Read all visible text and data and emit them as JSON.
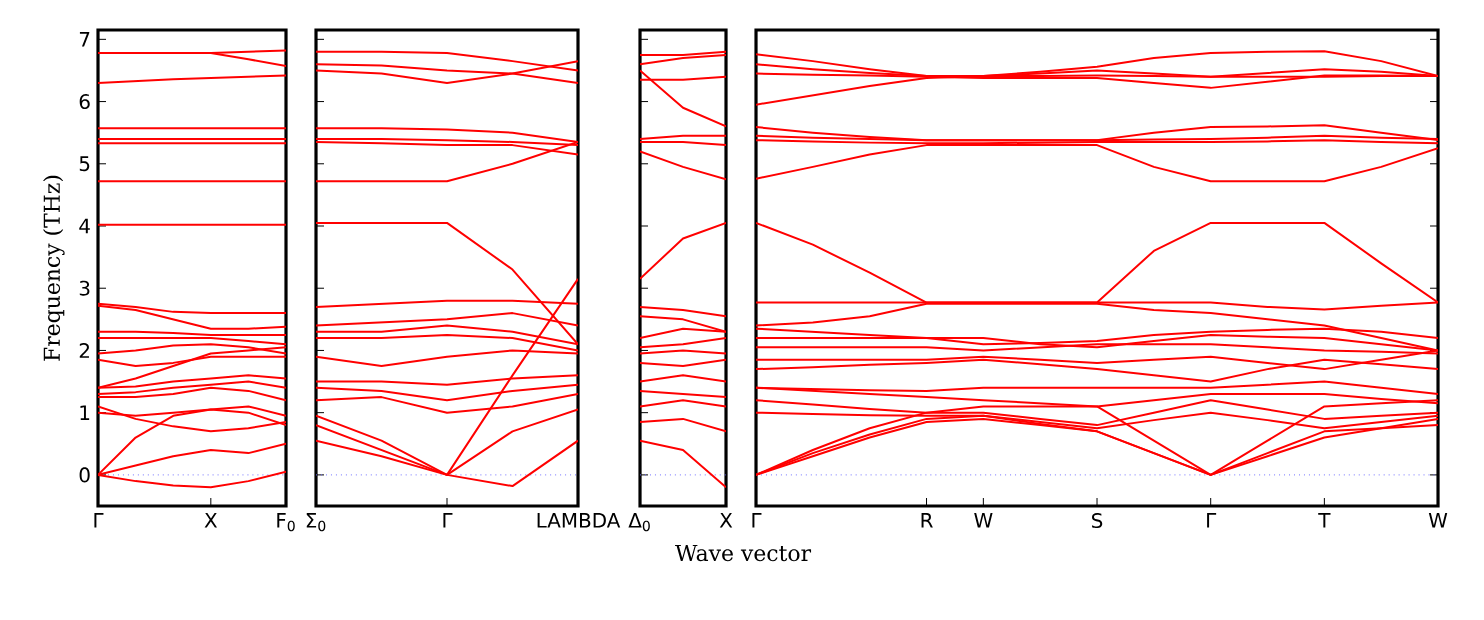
{
  "chart_data": [
    {
      "type": "line",
      "ylabel": "Frequency (THz)",
      "categories": [
        "Γ",
        null,
        null,
        "X",
        null,
        "F$_{0}$"
      ],
      "ylim": [
        -0.5,
        7.15
      ],
      "yticks": [
        0,
        1,
        2,
        3,
        4,
        5,
        6,
        7
      ],
      "marker": "none",
      "line_style": "solid",
      "ref_lines": [
        {
          "axis": "y",
          "value": 0,
          "color": "#7070ff",
          "line_style": "dotted"
        }
      ],
      "series": [
        {
          "color": "#ff0000",
          "values": [
            6.78,
            6.78,
            6.78,
            6.78,
            6.8,
            6.82
          ]
        },
        {
          "color": "#ff0000",
          "values": [
            6.78,
            6.78,
            6.78,
            6.78,
            6.68,
            6.57
          ]
        },
        {
          "color": "#ff0000",
          "values": [
            6.3,
            6.33,
            6.36,
            6.38,
            6.4,
            6.42
          ]
        },
        {
          "color": "#ff0000",
          "values": [
            5.57,
            5.57,
            5.57,
            5.57,
            5.57,
            5.57
          ]
        },
        {
          "color": "#ff0000",
          "values": [
            5.4,
            5.4,
            5.4,
            5.4,
            5.4,
            5.4
          ]
        },
        {
          "color": "#ff0000",
          "values": [
            5.33,
            5.33,
            5.33,
            5.33,
            5.33,
            5.33
          ]
        },
        {
          "color": "#ff0000",
          "values": [
            4.72,
            4.72,
            4.72,
            4.72,
            4.72,
            4.72
          ]
        },
        {
          "color": "#ff0000",
          "values": [
            4.02,
            4.02,
            4.02,
            4.02,
            4.02,
            4.02
          ]
        },
        {
          "color": "#ff0000",
          "values": [
            2.75,
            2.7,
            2.62,
            2.6,
            2.6,
            2.6
          ]
        },
        {
          "color": "#ff0000",
          "values": [
            2.72,
            2.65,
            2.5,
            2.35,
            2.35,
            2.38
          ]
        },
        {
          "color": "#ff0000",
          "values": [
            2.3,
            2.3,
            2.28,
            2.25,
            2.25,
            2.25
          ]
        },
        {
          "color": "#ff0000",
          "values": [
            2.2,
            2.2,
            2.2,
            2.2,
            2.15,
            2.1
          ]
        },
        {
          "color": "#ff0000",
          "values": [
            1.95,
            2.0,
            2.08,
            2.1,
            2.05,
            1.95
          ]
        },
        {
          "color": "#ff0000",
          "values": [
            1.85,
            1.75,
            1.8,
            1.9,
            1.9,
            1.9
          ]
        },
        {
          "color": "#ff0000",
          "values": [
            1.4,
            1.55,
            1.75,
            1.95,
            2.0,
            2.05
          ]
        },
        {
          "color": "#ff0000",
          "values": [
            1.4,
            1.42,
            1.5,
            1.55,
            1.6,
            1.55
          ]
        },
        {
          "color": "#ff0000",
          "values": [
            1.3,
            1.33,
            1.4,
            1.45,
            1.5,
            1.4
          ]
        },
        {
          "color": "#ff0000",
          "values": [
            1.25,
            1.25,
            1.3,
            1.4,
            1.35,
            1.2
          ]
        },
        {
          "color": "#ff0000",
          "values": [
            1.1,
            0.9,
            0.78,
            0.7,
            0.75,
            0.85
          ]
        },
        {
          "color": "#ff0000",
          "values": [
            1.0,
            0.95,
            1.0,
            1.05,
            1.1,
            0.95
          ]
        },
        {
          "color": "#ff0000",
          "values": [
            0,
            0.6,
            0.95,
            1.05,
            1.0,
            0.8
          ]
        },
        {
          "color": "#ff0000",
          "values": [
            0,
            0.15,
            0.3,
            0.4,
            0.35,
            0.5
          ]
        },
        {
          "color": "#ff0000",
          "values": [
            0,
            -0.1,
            -0.17,
            -0.2,
            -0.1,
            0.05
          ]
        }
      ]
    },
    {
      "type": "line",
      "categories": [
        "Σ$_{0}$",
        null,
        "Γ",
        null,
        "LAMBDA"
      ],
      "ylim": [
        -0.5,
        7.15
      ],
      "yticks": [
        0,
        1,
        2,
        3,
        4,
        5,
        6,
        7
      ],
      "tick_labels": "x",
      "marker": "none",
      "line_style": "solid",
      "ref_lines": [
        {
          "axis": "y",
          "value": 0,
          "color": "#7070ff",
          "line_style": "dotted"
        }
      ],
      "series": [
        {
          "color": "#ff0000",
          "values": [
            6.8,
            6.8,
            6.78,
            6.65,
            6.5
          ]
        },
        {
          "color": "#ff0000",
          "values": [
            6.6,
            6.58,
            6.5,
            6.45,
            6.3
          ]
        },
        {
          "color": "#ff0000",
          "values": [
            6.5,
            6.45,
            6.3,
            6.45,
            6.65
          ]
        },
        {
          "color": "#ff0000",
          "values": [
            5.57,
            5.57,
            5.55,
            5.5,
            5.35
          ]
        },
        {
          "color": "#ff0000",
          "values": [
            5.4,
            5.4,
            5.38,
            5.35,
            5.3
          ]
        },
        {
          "color": "#ff0000",
          "values": [
            5.35,
            5.33,
            5.3,
            5.3,
            5.15
          ]
        },
        {
          "color": "#ff0000",
          "values": [
            4.72,
            4.72,
            4.72,
            5.0,
            5.35
          ]
        },
        {
          "color": "#ff0000",
          "values": [
            4.05,
            4.05,
            4.05,
            3.3,
            2.1
          ]
        },
        {
          "color": "#ff0000",
          "values": [
            2.7,
            2.75,
            2.8,
            2.8,
            2.75
          ]
        },
        {
          "color": "#ff0000",
          "values": [
            2.4,
            2.45,
            2.5,
            2.6,
            2.4
          ]
        },
        {
          "color": "#ff0000",
          "values": [
            2.3,
            2.3,
            2.4,
            2.3,
            2.1
          ]
        },
        {
          "color": "#ff0000",
          "values": [
            2.2,
            2.2,
            2.25,
            2.2,
            2.0
          ]
        },
        {
          "color": "#ff0000",
          "values": [
            1.9,
            1.75,
            1.9,
            2.0,
            1.95
          ]
        },
        {
          "color": "#ff0000",
          "values": [
            1.5,
            1.5,
            1.45,
            1.55,
            1.6
          ]
        },
        {
          "color": "#ff0000",
          "values": [
            1.4,
            1.35,
            1.2,
            1.35,
            1.45
          ]
        },
        {
          "color": "#ff0000",
          "values": [
            1.2,
            1.25,
            1.0,
            1.1,
            1.3
          ]
        },
        {
          "color": "#ff0000",
          "values": [
            0.95,
            0.55,
            0,
            1.6,
            3.15
          ]
        },
        {
          "color": "#ff0000",
          "values": [
            0.8,
            0.4,
            0,
            0.7,
            1.05
          ]
        },
        {
          "color": "#ff0000",
          "values": [
            0.55,
            0.3,
            0,
            -0.18,
            0.55
          ]
        }
      ]
    },
    {
      "type": "line",
      "xlabel": "Wave vector",
      "categories": [
        "Δ$_{0}$",
        null,
        "X"
      ],
      "ylim": [
        -0.5,
        7.15
      ],
      "yticks": [
        0,
        1,
        2,
        3,
        4,
        5,
        6,
        7
      ],
      "tick_labels": "x",
      "marker": "none",
      "line_style": "solid",
      "ref_lines": [
        {
          "axis": "y",
          "value": 0,
          "color": "#7070ff",
          "line_style": "dotted"
        }
      ],
      "series": [
        {
          "color": "#ff0000",
          "values": [
            6.75,
            6.75,
            6.8
          ]
        },
        {
          "color": "#ff0000",
          "values": [
            6.6,
            6.7,
            6.75
          ]
        },
        {
          "color": "#ff0000",
          "values": [
            6.35,
            6.35,
            6.4
          ]
        },
        {
          "color": "#ff0000",
          "values": [
            6.5,
            5.9,
            5.6
          ]
        },
        {
          "color": "#ff0000",
          "values": [
            5.4,
            5.45,
            5.45
          ]
        },
        {
          "color": "#ff0000",
          "values": [
            5.35,
            5.35,
            5.3
          ]
        },
        {
          "color": "#ff0000",
          "values": [
            5.2,
            4.95,
            4.75
          ]
        },
        {
          "color": "#ff0000",
          "values": [
            3.15,
            3.8,
            4.05
          ]
        },
        {
          "color": "#ff0000",
          "values": [
            2.7,
            2.65,
            2.55
          ]
        },
        {
          "color": "#ff0000",
          "values": [
            2.55,
            2.5,
            2.3
          ]
        },
        {
          "color": "#ff0000",
          "values": [
            2.2,
            2.35,
            2.3
          ]
        },
        {
          "color": "#ff0000",
          "values": [
            2.05,
            2.1,
            2.2
          ]
        },
        {
          "color": "#ff0000",
          "values": [
            1.95,
            2.0,
            1.95
          ]
        },
        {
          "color": "#ff0000",
          "values": [
            1.8,
            1.75,
            1.85
          ]
        },
        {
          "color": "#ff0000",
          "values": [
            1.5,
            1.6,
            1.5
          ]
        },
        {
          "color": "#ff0000",
          "values": [
            1.35,
            1.3,
            1.25
          ]
        },
        {
          "color": "#ff0000",
          "values": [
            1.1,
            1.2,
            1.1
          ]
        },
        {
          "color": "#ff0000",
          "values": [
            0.85,
            0.9,
            0.7
          ]
        },
        {
          "color": "#ff0000",
          "values": [
            0.55,
            0.4,
            -0.2
          ]
        }
      ]
    },
    {
      "type": "line",
      "categories": [
        "Γ",
        null,
        null,
        "R",
        "W",
        null,
        "S",
        null,
        "Γ",
        null,
        "T",
        null,
        "W"
      ],
      "ylim": [
        -0.5,
        7.15
      ],
      "yticks": [
        {
          "value": 0,
          "label": null
        },
        {
          "value": 1,
          "label": null
        },
        {
          "value": 2,
          "label": null
        },
        {
          "value": 3,
          "label": null
        },
        {
          "value": 4,
          "label": null
        },
        {
          "value": 5,
          "label": null
        },
        {
          "value": 6,
          "label": null
        },
        {
          "value": 7,
          "label": null
        }
      ],
      "tick_labels": "x",
      "marker": "none",
      "line_style": "solid",
      "ref_lines": [
        {
          "axis": "y",
          "value": 0,
          "color": "#7070ff",
          "line_style": "dotted"
        }
      ],
      "series": [
        {
          "color": "#ff0000",
          "values": [
            6.76,
            6.65,
            6.52,
            6.41,
            6.41,
            6.48,
            6.56,
            6.7,
            6.78,
            6.8,
            6.81,
            6.65,
            6.41
          ]
        },
        {
          "color": "#ff0000",
          "values": [
            6.6,
            6.52,
            6.46,
            6.41,
            6.41,
            6.41,
            6.42,
            6.41,
            6.4,
            6.46,
            6.52,
            6.48,
            6.41
          ]
        },
        {
          "color": "#ff0000",
          "values": [
            6.45,
            6.43,
            6.42,
            6.4,
            6.38,
            6.38,
            6.38,
            6.3,
            6.22,
            6.32,
            6.42,
            6.42,
            6.41
          ]
        },
        {
          "color": "#ff0000",
          "values": [
            5.95,
            6.1,
            6.25,
            6.38,
            6.41,
            6.45,
            6.5,
            6.45,
            6.4,
            6.4,
            6.4,
            6.41,
            6.41
          ]
        },
        {
          "color": "#ff0000",
          "values": [
            5.59,
            5.5,
            5.43,
            5.38,
            5.38,
            5.38,
            5.38,
            5.5,
            5.59,
            5.6,
            5.62,
            5.5,
            5.38
          ]
        },
        {
          "color": "#ff0000",
          "values": [
            5.45,
            5.42,
            5.4,
            5.38,
            5.38,
            5.38,
            5.38,
            5.39,
            5.4,
            5.42,
            5.45,
            5.42,
            5.4
          ]
        },
        {
          "color": "#ff0000",
          "values": [
            5.38,
            5.36,
            5.34,
            5.33,
            5.33,
            5.34,
            5.35,
            5.35,
            5.35,
            5.36,
            5.38,
            5.35,
            5.33
          ]
        },
        {
          "color": "#ff0000",
          "values": [
            4.76,
            4.95,
            5.15,
            5.3,
            5.3,
            5.3,
            5.3,
            4.95,
            4.72,
            4.72,
            4.72,
            4.95,
            5.25
          ]
        },
        {
          "color": "#ff0000",
          "values": [
            4.05,
            3.7,
            3.25,
            2.77,
            2.77,
            2.77,
            2.77,
            3.6,
            4.05,
            4.05,
            4.05,
            3.4,
            2.77
          ]
        },
        {
          "color": "#ff0000",
          "values": [
            2.77,
            2.77,
            2.77,
            2.77,
            2.77,
            2.77,
            2.77,
            2.77,
            2.77,
            2.7,
            2.66,
            2.72,
            2.77
          ]
        },
        {
          "color": "#ff0000",
          "values": [
            2.4,
            2.45,
            2.55,
            2.75,
            2.75,
            2.75,
            2.75,
            2.65,
            2.6,
            2.5,
            2.4,
            2.2,
            2.0
          ]
        },
        {
          "color": "#ff0000",
          "values": [
            2.35,
            2.3,
            2.25,
            2.2,
            2.1,
            2.12,
            2.15,
            2.25,
            2.3,
            2.33,
            2.35,
            2.3,
            2.2
          ]
        },
        {
          "color": "#ff0000",
          "values": [
            2.2,
            2.2,
            2.2,
            2.2,
            2.2,
            2.1,
            2.05,
            2.15,
            2.25,
            2.22,
            2.2,
            2.1,
            2.0
          ]
        },
        {
          "color": "#ff0000",
          "values": [
            2.05,
            2.05,
            2.05,
            2.05,
            2.0,
            2.05,
            2.1,
            2.1,
            2.1,
            2.05,
            2.0,
            1.98,
            1.95
          ]
        },
        {
          "color": "#ff0000",
          "values": [
            1.85,
            1.85,
            1.85,
            1.85,
            1.9,
            1.85,
            1.8,
            1.85,
            1.9,
            1.8,
            1.7,
            1.85,
            2.0
          ]
        },
        {
          "color": "#ff0000",
          "values": [
            1.7,
            1.73,
            1.77,
            1.8,
            1.85,
            1.78,
            1.7,
            1.6,
            1.5,
            1.7,
            1.85,
            1.78,
            1.7
          ]
        },
        {
          "color": "#ff0000",
          "values": [
            1.4,
            1.38,
            1.36,
            1.35,
            1.4,
            1.4,
            1.4,
            1.4,
            1.4,
            1.45,
            1.5,
            1.4,
            1.3
          ]
        },
        {
          "color": "#ff0000",
          "values": [
            1.4,
            1.35,
            1.3,
            1.25,
            1.2,
            1.15,
            1.1,
            1.2,
            1.3,
            1.3,
            1.3,
            1.22,
            1.15
          ]
        },
        {
          "color": "#ff0000",
          "values": [
            1.2,
            1.13,
            1.06,
            1.0,
            1.0,
            0.9,
            0.8,
            1.0,
            1.2,
            1.05,
            0.9,
            0.95,
            1.0
          ]
        },
        {
          "color": "#ff0000",
          "values": [
            1.0,
            0.98,
            0.96,
            0.95,
            0.95,
            0.85,
            0.75,
            0.88,
            1.0,
            0.88,
            0.75,
            0.85,
            0.95
          ]
        },
        {
          "color": "#ff0000",
          "values": [
            0,
            0.35,
            0.65,
            0.9,
            0.95,
            0.82,
            0.7,
            0.35,
            0,
            0.35,
            0.7,
            0.75,
            0.8
          ]
        },
        {
          "color": "#ff0000",
          "values": [
            0,
            0.3,
            0.6,
            0.85,
            0.9,
            0.8,
            0.7,
            0.35,
            0,
            0.3,
            0.6,
            0.75,
            0.9
          ]
        },
        {
          "color": "#ff0000",
          "values": [
            0,
            0.4,
            0.75,
            1.0,
            1.1,
            1.1,
            1.1,
            0.55,
            0,
            0.55,
            1.1,
            1.15,
            1.2
          ]
        }
      ]
    }
  ]
}
